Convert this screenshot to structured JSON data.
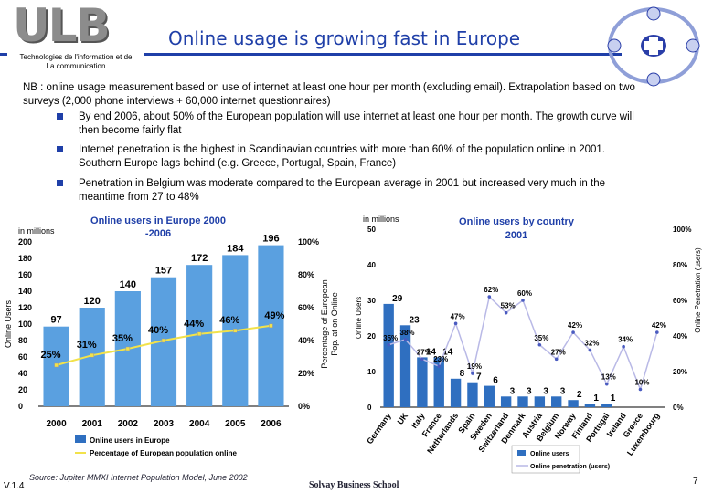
{
  "header": {
    "logo_text": "ULB",
    "title": "Online usage is growing fast in Europe",
    "dept_line1": "Technologies de l'information et de",
    "dept_line2": "La communication"
  },
  "intro": "NB : online usage measurement based on use of internet at least one hour per month (excluding email). Extrapolation based on two surveys (2,000 phone interviews + 60,000 internet questionnaires)",
  "bullets": [
    {
      "line1": "By end 2006, about 50% of the European population will use internet at least one hour per month. The growth curve will",
      "line2": "then become fairly flat"
    },
    {
      "line1": "Internet penetration is the highest in Scandinavian countries with more than 60% of the population online in 2001.",
      "line2": "Southern Europe lags behind (e.g. Greece, Portugal, Spain, France)"
    },
    {
      "line1": "Penetration in Belgium was moderate compared to the European average in 2001 but increased very much in the",
      "line2": "meantime from 27 to 48%"
    }
  ],
  "colors": {
    "accent": "#1f3fa8",
    "bar": "#5aa0e0",
    "bar_dark": "#2f6fc0",
    "line": "#f2e24a",
    "line2": "#4a5bc0"
  },
  "footer": {
    "source": "Source: Jupiter MMXI Internet Population Model, June 2002",
    "version": "V.1.4",
    "school": "Solvay Business School",
    "page": "7"
  },
  "chart_data": [
    {
      "type": "bar",
      "title_line1": "Online users in Europe 2000",
      "title_line2": "-2006",
      "units_label": "in millions",
      "ylabel": "Online Users",
      "y2label_line1": "Percentage of European",
      "y2label_line2": "Pop. at on Online",
      "categories": [
        "2000",
        "2001",
        "2002",
        "2003",
        "2004",
        "2005",
        "2006"
      ],
      "ylim": [
        0,
        200
      ],
      "yticks": [
        "0",
        "20",
        "40",
        "60",
        "80",
        "100",
        "120",
        "140",
        "160",
        "180",
        "200"
      ],
      "y2ticks": [
        "0%",
        "20%",
        "40%",
        "60%",
        "80%",
        "100%"
      ],
      "series": [
        {
          "name": "Online users in Europe",
          "axis": "left",
          "values": [
            97,
            120,
            140,
            157,
            172,
            184,
            196
          ],
          "labels": [
            "97",
            "120",
            "140",
            "157",
            "172",
            "184",
            "196"
          ]
        },
        {
          "name": "Percentage of European population online",
          "axis": "right",
          "values": [
            25,
            31,
            35,
            40,
            44,
            46,
            49
          ],
          "labels": [
            "25%",
            "31%",
            "35%",
            "40%",
            "44%",
            "46%",
            "49%"
          ]
        }
      ],
      "legend": [
        "Online users in Europe",
        "Percentage of European population online"
      ]
    },
    {
      "type": "bar",
      "title_line1": "Online users by country",
      "title_line2": "2001",
      "units_label": "in millions",
      "ylabel": "Online Users",
      "y2label": "Online Penetration (users)",
      "categories": [
        "Germany",
        "UK",
        "Italy",
        "France",
        "Netherlands",
        "Spain",
        "Sweden",
        "Switzerland",
        "Denmark",
        "Austria",
        "Belgium",
        "Norway",
        "Finland",
        "Portugal",
        "Ireland",
        "Greece",
        "Luxembourg"
      ],
      "ylim": [
        0,
        50
      ],
      "yticks": [
        "0",
        "10",
        "20",
        "30",
        "40",
        "50"
      ],
      "y2ticks": [
        "0%",
        "20%",
        "40%",
        "60%",
        "80%",
        "100%"
      ],
      "series": [
        {
          "name": "Online users",
          "axis": "left",
          "values": [
            29,
            23,
            14,
            14,
            8,
            7,
            6,
            3,
            3,
            3,
            3,
            2,
            1,
            1,
            0,
            0,
            0
          ],
          "labels": [
            "29",
            "23",
            "14",
            "14",
            "8",
            "7",
            "6",
            "3",
            "3",
            "3",
            "3",
            "2",
            "1",
            "1",
            "",
            "",
            ""
          ]
        },
        {
          "name": "Online penetration (users)",
          "axis": "right",
          "values": [
            35,
            38,
            27,
            23,
            47,
            19,
            62,
            53,
            60,
            35,
            27,
            42,
            32,
            13,
            34,
            10,
            42
          ],
          "labels": [
            "35%",
            "38%",
            "27%",
            "23%",
            "47%",
            "19%",
            "62%",
            "53%",
            "60%",
            "35%",
            "27%",
            "42%",
            "32%",
            "13%",
            "34%",
            "10%",
            "42%"
          ]
        }
      ],
      "legend": [
        "Online users",
        "Online penetration (users)"
      ]
    }
  ]
}
